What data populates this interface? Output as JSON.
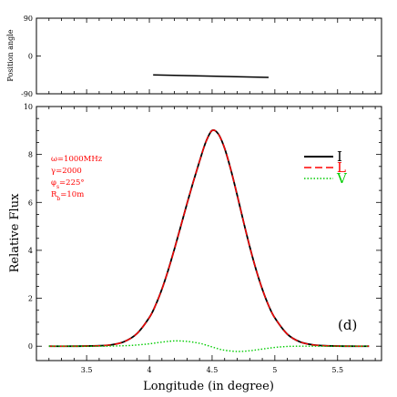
{
  "chart_data": [
    {
      "panel": "top",
      "type": "line",
      "ylabel": "Position angle",
      "xlim": [
        3.1,
        5.85
      ],
      "ylim": [
        -90,
        90
      ],
      "yticks": [
        -90,
        0,
        90
      ],
      "ytick_labels": [
        "-90",
        "0",
        "90"
      ],
      "series": [
        {
          "name": "",
          "color": "#000000",
          "x": [
            4.03,
            4.95
          ],
          "y": [
            -45,
            -51
          ]
        }
      ]
    },
    {
      "panel": "bottom",
      "type": "line",
      "xlabel": "Longitude (in degree)",
      "ylabel": "Relative Flux",
      "xlim": [
        3.1,
        5.85
      ],
      "ylim": [
        -0.6,
        10
      ],
      "xticks": [
        3.5,
        4.0,
        4.5,
        5.0,
        5.5
      ],
      "xtick_labels": [
        "3.5",
        "4",
        "4.5",
        "5",
        "5.5"
      ],
      "yticks": [
        0,
        2,
        4,
        6,
        8,
        10
      ],
      "ytick_labels": [
        "0",
        "2",
        "4",
        "6",
        "8",
        "10"
      ],
      "series": [
        {
          "name": "I",
          "color": "#000000",
          "dash": "solid",
          "x": [
            3.2,
            3.4,
            3.6,
            3.7,
            3.8,
            3.9,
            4.0,
            4.05,
            4.1,
            4.15,
            4.2,
            4.25,
            4.3,
            4.35,
            4.4,
            4.45,
            4.5,
            4.55,
            4.6,
            4.65,
            4.7,
            4.75,
            4.8,
            4.85,
            4.9,
            4.95,
            5.0,
            5.1,
            5.2,
            5.3,
            5.4,
            5.6,
            5.75
          ],
          "y": [
            0,
            0,
            0.02,
            0.06,
            0.19,
            0.52,
            1.2,
            1.72,
            2.38,
            3.17,
            4.06,
            5.0,
            5.95,
            6.86,
            7.72,
            8.52,
            9.0,
            8.85,
            8.25,
            7.35,
            6.3,
            5.2,
            4.15,
            3.2,
            2.38,
            1.7,
            1.18,
            0.5,
            0.18,
            0.06,
            0.02,
            0,
            0
          ]
        },
        {
          "name": "L",
          "color": "#ff0000",
          "dash": "dashed",
          "x": [
            3.2,
            3.4,
            3.6,
            3.7,
            3.8,
            3.9,
            4.0,
            4.05,
            4.1,
            4.15,
            4.2,
            4.25,
            4.3,
            4.35,
            4.4,
            4.45,
            4.5,
            4.55,
            4.6,
            4.65,
            4.7,
            4.75,
            4.8,
            4.85,
            4.9,
            4.95,
            5.0,
            5.1,
            5.2,
            5.3,
            5.4,
            5.6,
            5.75
          ],
          "y": [
            0,
            0,
            0.02,
            0.06,
            0.19,
            0.52,
            1.2,
            1.72,
            2.38,
            3.17,
            4.06,
            5.0,
            5.95,
            6.86,
            7.72,
            8.52,
            9.0,
            8.85,
            8.25,
            7.35,
            6.3,
            5.2,
            4.15,
            3.2,
            2.38,
            1.7,
            1.18,
            0.5,
            0.18,
            0.06,
            0.02,
            0,
            0
          ]
        },
        {
          "name": "V",
          "color": "#00cc00",
          "dash": "dotted",
          "x": [
            3.2,
            3.6,
            3.8,
            3.9,
            4.0,
            4.1,
            4.2,
            4.3,
            4.4,
            4.45,
            4.5,
            4.55,
            4.6,
            4.7,
            4.8,
            4.9,
            5.0,
            5.1,
            5.2,
            5.3,
            5.5,
            5.75
          ],
          "y": [
            0,
            0,
            0.02,
            0.05,
            0.1,
            0.17,
            0.22,
            0.2,
            0.12,
            0.05,
            -0.03,
            -0.11,
            -0.17,
            -0.22,
            -0.19,
            -0.12,
            -0.05,
            -0.01,
            0,
            0,
            0,
            0
          ]
        }
      ],
      "legend": {
        "placement": "top-right",
        "entries": [
          {
            "label": "I",
            "color": "#000000",
            "dash": "solid"
          },
          {
            "label": "L",
            "color": "#ff0000",
            "dash": "dashed"
          },
          {
            "label": "V",
            "color": "#00cc00",
            "dash": "dotted"
          }
        ]
      },
      "annotations": {
        "params": [
          "ω=1000MHz",
          "γ=2000",
          "φ_s=225°",
          "R_b=10m"
        ],
        "params_color": "#ff0000",
        "panel_tag": "(d)"
      }
    }
  ]
}
